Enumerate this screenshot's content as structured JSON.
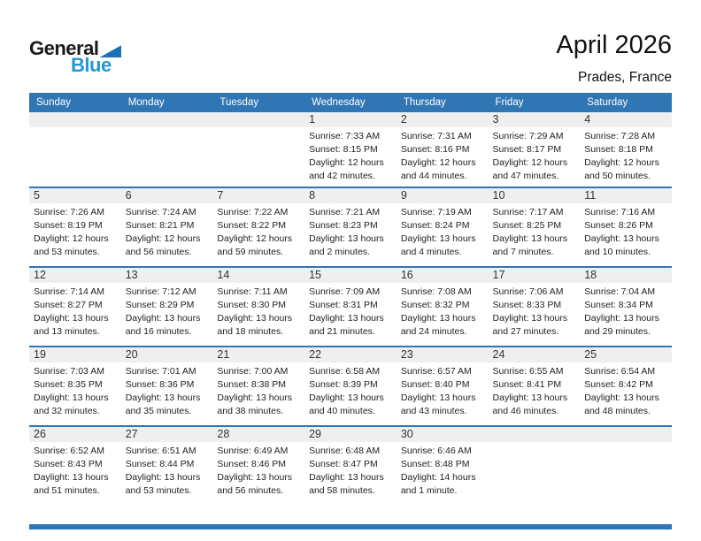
{
  "logo": {
    "general": "General",
    "blue": "Blue"
  },
  "title": "April 2026",
  "subtitle": "Prades, France",
  "weekday_headers": [
    "Sunday",
    "Monday",
    "Tuesday",
    "Wednesday",
    "Thursday",
    "Friday",
    "Saturday"
  ],
  "labels": {
    "sunrise": "Sunrise:",
    "sunset": "Sunset:",
    "daylight": "Daylight:"
  },
  "colors": {
    "header_blue": "#3176B4",
    "row_border": "#3176B4",
    "date_strip": "#EFEFEF",
    "logo_blue": "#2397D4",
    "logo_triangle": "#1D70B7"
  },
  "weeks": [
    [
      null,
      null,
      null,
      {
        "day": "1",
        "sunrise": "7:33 AM",
        "sunset": "8:15 PM",
        "daylight": "12 hours and 42 minutes."
      },
      {
        "day": "2",
        "sunrise": "7:31 AM",
        "sunset": "8:16 PM",
        "daylight": "12 hours and 44 minutes."
      },
      {
        "day": "3",
        "sunrise": "7:29 AM",
        "sunset": "8:17 PM",
        "daylight": "12 hours and 47 minutes."
      },
      {
        "day": "4",
        "sunrise": "7:28 AM",
        "sunset": "8:18 PM",
        "daylight": "12 hours and 50 minutes."
      }
    ],
    [
      {
        "day": "5",
        "sunrise": "7:26 AM",
        "sunset": "8:19 PM",
        "daylight": "12 hours and 53 minutes."
      },
      {
        "day": "6",
        "sunrise": "7:24 AM",
        "sunset": "8:21 PM",
        "daylight": "12 hours and 56 minutes."
      },
      {
        "day": "7",
        "sunrise": "7:22 AM",
        "sunset": "8:22 PM",
        "daylight": "12 hours and 59 minutes."
      },
      {
        "day": "8",
        "sunrise": "7:21 AM",
        "sunset": "8:23 PM",
        "daylight": "13 hours and 2 minutes."
      },
      {
        "day": "9",
        "sunrise": "7:19 AM",
        "sunset": "8:24 PM",
        "daylight": "13 hours and 4 minutes."
      },
      {
        "day": "10",
        "sunrise": "7:17 AM",
        "sunset": "8:25 PM",
        "daylight": "13 hours and 7 minutes."
      },
      {
        "day": "11",
        "sunrise": "7:16 AM",
        "sunset": "8:26 PM",
        "daylight": "13 hours and 10 minutes."
      }
    ],
    [
      {
        "day": "12",
        "sunrise": "7:14 AM",
        "sunset": "8:27 PM",
        "daylight": "13 hours and 13 minutes."
      },
      {
        "day": "13",
        "sunrise": "7:12 AM",
        "sunset": "8:29 PM",
        "daylight": "13 hours and 16 minutes."
      },
      {
        "day": "14",
        "sunrise": "7:11 AM",
        "sunset": "8:30 PM",
        "daylight": "13 hours and 18 minutes."
      },
      {
        "day": "15",
        "sunrise": "7:09 AM",
        "sunset": "8:31 PM",
        "daylight": "13 hours and 21 minutes."
      },
      {
        "day": "16",
        "sunrise": "7:08 AM",
        "sunset": "8:32 PM",
        "daylight": "13 hours and 24 minutes."
      },
      {
        "day": "17",
        "sunrise": "7:06 AM",
        "sunset": "8:33 PM",
        "daylight": "13 hours and 27 minutes."
      },
      {
        "day": "18",
        "sunrise": "7:04 AM",
        "sunset": "8:34 PM",
        "daylight": "13 hours and 29 minutes."
      }
    ],
    [
      {
        "day": "19",
        "sunrise": "7:03 AM",
        "sunset": "8:35 PM",
        "daylight": "13 hours and 32 minutes."
      },
      {
        "day": "20",
        "sunrise": "7:01 AM",
        "sunset": "8:36 PM",
        "daylight": "13 hours and 35 minutes."
      },
      {
        "day": "21",
        "sunrise": "7:00 AM",
        "sunset": "8:38 PM",
        "daylight": "13 hours and 38 minutes."
      },
      {
        "day": "22",
        "sunrise": "6:58 AM",
        "sunset": "8:39 PM",
        "daylight": "13 hours and 40 minutes."
      },
      {
        "day": "23",
        "sunrise": "6:57 AM",
        "sunset": "8:40 PM",
        "daylight": "13 hours and 43 minutes."
      },
      {
        "day": "24",
        "sunrise": "6:55 AM",
        "sunset": "8:41 PM",
        "daylight": "13 hours and 46 minutes."
      },
      {
        "day": "25",
        "sunrise": "6:54 AM",
        "sunset": "8:42 PM",
        "daylight": "13 hours and 48 minutes."
      }
    ],
    [
      {
        "day": "26",
        "sunrise": "6:52 AM",
        "sunset": "8:43 PM",
        "daylight": "13 hours and 51 minutes."
      },
      {
        "day": "27",
        "sunrise": "6:51 AM",
        "sunset": "8:44 PM",
        "daylight": "13 hours and 53 minutes."
      },
      {
        "day": "28",
        "sunrise": "6:49 AM",
        "sunset": "8:46 PM",
        "daylight": "13 hours and 56 minutes."
      },
      {
        "day": "29",
        "sunrise": "6:48 AM",
        "sunset": "8:47 PM",
        "daylight": "13 hours and 58 minutes."
      },
      {
        "day": "30",
        "sunrise": "6:46 AM",
        "sunset": "8:48 PM",
        "daylight": "14 hours and 1 minute."
      },
      null,
      null
    ]
  ]
}
